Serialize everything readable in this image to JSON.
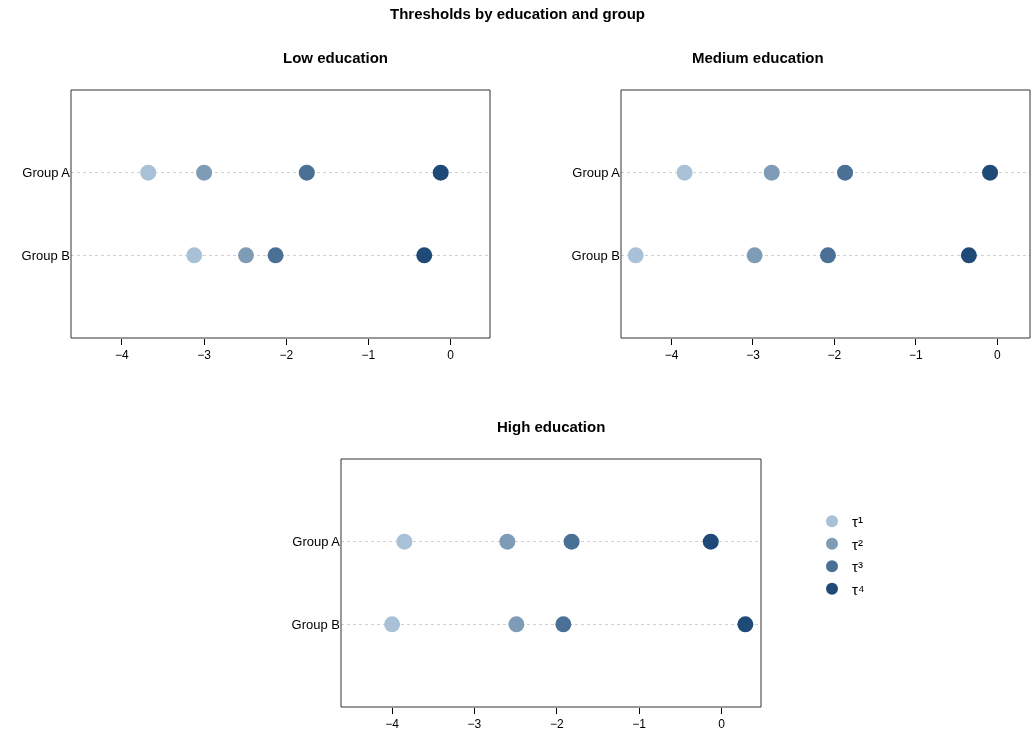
{
  "chart_data": [
    {
      "type": "other",
      "title": "Thresholds by education and group"
    },
    {
      "type": "scatter",
      "orientation": "horizontal",
      "title": "Low education",
      "categories": [
        "Group A",
        "Group B"
      ],
      "xlim": [
        -4.62,
        0.48
      ],
      "xticks": [
        -4,
        -3,
        -2,
        -1,
        0
      ],
      "grid": "y",
      "marker": "circle",
      "legend": false,
      "series": [
        {
          "color": "#a9c1d6",
          "values": [
            -3.68,
            -3.12
          ]
        },
        {
          "color": "#7f9cb6",
          "values": [
            -3.0,
            -2.49
          ]
        },
        {
          "color": "#4a7096",
          "values": [
            -1.75,
            -2.13
          ]
        },
        {
          "color": "#1f4a78",
          "values": [
            -0.12,
            -0.32
          ]
        }
      ]
    },
    {
      "type": "scatter",
      "orientation": "horizontal",
      "title": "Medium education",
      "categories": [
        "Group A",
        "Group B"
      ],
      "xlim": [
        -4.62,
        0.4
      ],
      "xticks": [
        -4,
        -3,
        -2,
        -1,
        0
      ],
      "grid": "y",
      "marker": "circle",
      "legend": false,
      "series": [
        {
          "color": "#a9c1d6",
          "values": [
            -3.84,
            -4.44
          ]
        },
        {
          "color": "#7f9cb6",
          "values": [
            -2.77,
            -2.98
          ]
        },
        {
          "color": "#4a7096",
          "values": [
            -1.87,
            -2.08
          ]
        },
        {
          "color": "#1f4a78",
          "values": [
            -0.09,
            -0.35
          ]
        }
      ]
    },
    {
      "type": "scatter",
      "orientation": "horizontal",
      "title": "High education",
      "categories": [
        "Group A",
        "Group B"
      ],
      "xlim": [
        -4.62,
        0.48
      ],
      "xticks": [
        -4,
        -3,
        -2,
        -1,
        0
      ],
      "grid": "y",
      "marker": "circle",
      "legend": "right",
      "series": [
        {
          "name": "τ¹",
          "color": "#a9c1d6",
          "values": [
            -3.85,
            -4.0
          ]
        },
        {
          "name": "τ²",
          "color": "#7f9cb6",
          "values": [
            -2.6,
            -2.49
          ]
        },
        {
          "name": "τ³",
          "color": "#4a7096",
          "values": [
            -1.82,
            -1.92
          ]
        },
        {
          "name": "τ⁴",
          "color": "#1f4a78",
          "values": [
            -0.13,
            0.29
          ]
        }
      ]
    }
  ]
}
